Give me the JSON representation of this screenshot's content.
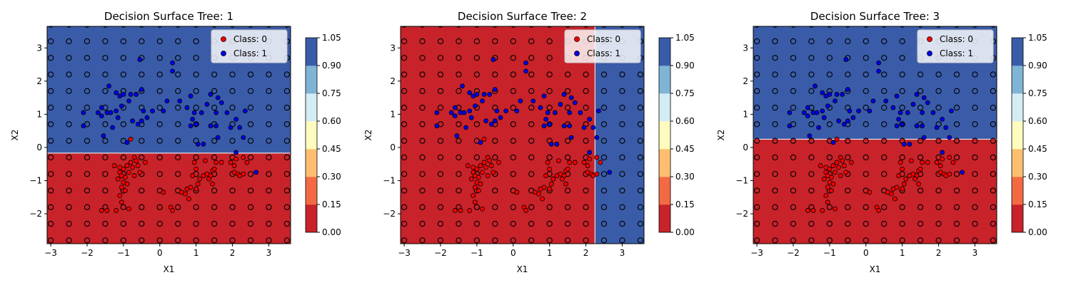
{
  "chart_data": [
    {
      "type": "decision-surface",
      "title": "Decision Surface Tree: 1",
      "xlabel": "X1",
      "ylabel": "X2",
      "xlim": [
        -3.1,
        3.6
      ],
      "ylim": [
        -2.9,
        3.65
      ],
      "xticks": [
        -3,
        -2,
        -1,
        0,
        1,
        2,
        3
      ],
      "yticks": [
        -2,
        -1,
        0,
        1,
        2,
        3
      ],
      "split": {
        "axis": "x2",
        "threshold": -0.17,
        "below_class": 0,
        "above_class": 1
      },
      "legend": {
        "position": "top-right",
        "entries": [
          "Class: 0",
          "Class: 1"
        ]
      },
      "colorbar": {
        "ticks": [
          "0.00",
          "0.15",
          "0.30",
          "0.45",
          "0.60",
          "0.75",
          "0.90",
          "1.05"
        ]
      }
    },
    {
      "type": "decision-surface",
      "title": "Decision Surface Tree: 2",
      "xlabel": "X1",
      "ylabel": "X2",
      "xlim": [
        -3.1,
        3.6
      ],
      "ylim": [
        -2.9,
        3.65
      ],
      "xticks": [
        -3,
        -2,
        -1,
        0,
        1,
        2,
        3
      ],
      "yticks": [
        -2,
        -1,
        0,
        1,
        2,
        3
      ],
      "split": {
        "axis": "x1",
        "threshold": 2.25,
        "below_class": 0,
        "above_class": 1
      },
      "legend": {
        "position": "top-right",
        "entries": [
          "Class: 0",
          "Class: 1"
        ]
      },
      "colorbar": {
        "ticks": [
          "0.00",
          "0.15",
          "0.30",
          "0.45",
          "0.60",
          "0.75",
          "0.90",
          "1.05"
        ]
      }
    },
    {
      "type": "decision-surface",
      "title": "Decision Surface Tree: 3",
      "xlabel": "X1",
      "ylabel": "X2",
      "xlim": [
        -3.1,
        3.6
      ],
      "ylim": [
        -2.9,
        3.65
      ],
      "xticks": [
        -3,
        -2,
        -1,
        0,
        1,
        2,
        3
      ],
      "yticks": [
        -2,
        -1,
        0,
        1,
        2,
        3
      ],
      "split": {
        "axis": "x2",
        "threshold": 0.25,
        "below_class": 0,
        "above_class": 1
      },
      "legend": {
        "position": "top-right",
        "entries": [
          "Class: 0",
          "Class: 1"
        ]
      },
      "colorbar": {
        "ticks": [
          "0.00",
          "0.15",
          "0.30",
          "0.45",
          "0.60",
          "0.75",
          "0.90",
          "1.05"
        ]
      }
    }
  ],
  "colors": {
    "class0": "#c8232a",
    "class1": "#3a5ca8",
    "colorbar_bands": [
      "#c8232a",
      "#f26a44",
      "#fdbf6f",
      "#fefbbe",
      "#d4ecf3",
      "#7fb4d6",
      "#3a5ca8"
    ],
    "point_class0": "#ff0000",
    "point_class1": "#0000ee"
  },
  "grid_points": {
    "x": [
      -3.0,
      -2.5,
      -2.0,
      -1.5,
      -1.0,
      -0.5,
      0.0,
      0.5,
      1.0,
      1.5,
      2.0,
      2.5,
      3.0,
      3.5
    ],
    "y": [
      -2.8,
      -2.3,
      -1.8,
      -1.3,
      -0.8,
      -0.3,
      0.2,
      0.7,
      1.2,
      1.7,
      2.2,
      2.7,
      3.2,
      3.7
    ]
  },
  "samples": {
    "class0": [
      [
        -0.8,
        0.25
      ],
      [
        -0.7,
        -0.3
      ],
      [
        -0.65,
        -0.4
      ],
      [
        -0.8,
        -0.45
      ],
      [
        -0.6,
        -0.55
      ],
      [
        -0.75,
        -0.6
      ],
      [
        -0.9,
        -0.55
      ],
      [
        -1.0,
        -0.65
      ],
      [
        -1.1,
        -0.75
      ],
      [
        -1.05,
        -0.85
      ],
      [
        -0.95,
        -0.9
      ],
      [
        -1.15,
        -0.95
      ],
      [
        -1.0,
        -1.05
      ],
      [
        -0.9,
        -1.1
      ],
      [
        -1.05,
        -1.2
      ],
      [
        -0.95,
        -1.3
      ],
      [
        -1.1,
        -1.45
      ],
      [
        -1.05,
        -1.65
      ],
      [
        -0.85,
        -1.85
      ],
      [
        -1.2,
        -1.9
      ],
      [
        -1.6,
        -1.9
      ],
      [
        -1.45,
        -1.9
      ],
      [
        -0.4,
        -0.45
      ],
      [
        -0.55,
        -0.75
      ],
      [
        -0.7,
        -0.85
      ],
      [
        -0.85,
        -0.75
      ],
      [
        -1.1,
        -0.6
      ],
      [
        0.1,
        -1.35
      ],
      [
        0.3,
        -1.8
      ],
      [
        0.35,
        -1.9
      ],
      [
        0.6,
        -1.35
      ],
      [
        0.75,
        -1.25
      ],
      [
        0.85,
        -1.2
      ],
      [
        0.7,
        -1.4
      ],
      [
        0.8,
        -1.55
      ],
      [
        1.0,
        -1.25
      ],
      [
        1.05,
        -1.1
      ],
      [
        0.9,
        -0.85
      ],
      [
        1.0,
        -0.65
      ],
      [
        0.95,
        -0.45
      ],
      [
        1.1,
        -0.95
      ],
      [
        1.2,
        -0.85
      ],
      [
        1.3,
        -0.8
      ],
      [
        1.4,
        -0.85
      ],
      [
        1.35,
        -0.95
      ],
      [
        1.45,
        -0.7
      ],
      [
        1.55,
        -0.45
      ],
      [
        1.7,
        -0.45
      ],
      [
        1.95,
        -0.45
      ],
      [
        2.05,
        -0.75
      ],
      [
        2.15,
        -0.8
      ],
      [
        2.2,
        -0.85
      ],
      [
        2.3,
        -0.8
      ],
      [
        2.1,
        -0.35
      ],
      [
        2.3,
        -0.3
      ],
      [
        2.05,
        -0.55
      ],
      [
        1.45,
        -1.1
      ],
      [
        1.5,
        -0.65
      ],
      [
        1.25,
        -0.4
      ],
      [
        2.4,
        -0.45
      ],
      [
        -1.25,
        -0.55
      ]
    ],
    "class1": [
      [
        -2.1,
        0.65
      ],
      [
        -2.1,
        1.05
      ],
      [
        -1.7,
        1.05
      ],
      [
        -1.6,
        1.2
      ],
      [
        -1.6,
        0.95
      ],
      [
        -1.45,
        1.05
      ],
      [
        -1.35,
        1.05
      ],
      [
        -1.55,
        0.35
      ],
      [
        -1.3,
        0.6
      ],
      [
        -1.2,
        1.1
      ],
      [
        -1.15,
        0.9
      ],
      [
        -1.1,
        1.55
      ],
      [
        -1.0,
        1.6
      ],
      [
        -1.05,
        1.25
      ],
      [
        -0.85,
        1.4
      ],
      [
        -1.4,
        1.85
      ],
      [
        -1.2,
        1.65
      ],
      [
        -0.8,
        1.6
      ],
      [
        -0.65,
        1.6
      ],
      [
        -0.5,
        1.75
      ],
      [
        -0.55,
        2.65
      ],
      [
        -0.75,
        0.8
      ],
      [
        -0.6,
        0.7
      ],
      [
        -0.5,
        0.8
      ],
      [
        -0.45,
        1.1
      ],
      [
        -0.35,
        0.9
      ],
      [
        -0.2,
        1.1
      ],
      [
        0.1,
        1.1
      ],
      [
        0.2,
        1.4
      ],
      [
        0.35,
        2.3
      ],
      [
        0.35,
        2.55
      ],
      [
        0.55,
        1.4
      ],
      [
        0.75,
        1.2
      ],
      [
        0.85,
        1.55
      ],
      [
        0.95,
        1.05
      ],
      [
        0.9,
        0.85
      ],
      [
        0.85,
        0.65
      ],
      [
        1.0,
        0.7
      ],
      [
        1.05,
        0.1
      ],
      [
        1.15,
        1.05
      ],
      [
        1.3,
        1.3
      ],
      [
        1.4,
        1.6
      ],
      [
        1.55,
        1.05
      ],
      [
        1.6,
        1.5
      ],
      [
        1.7,
        1.35
      ],
      [
        1.85,
        1.05
      ],
      [
        1.55,
        0.65
      ],
      [
        1.4,
        0.65
      ],
      [
        1.6,
        0.3
      ],
      [
        1.95,
        0.6
      ],
      [
        2.1,
        0.85
      ],
      [
        2.1,
        -0.15
      ],
      [
        2.3,
        0.3
      ],
      [
        2.2,
        0.6
      ],
      [
        2.35,
        1.1
      ],
      [
        2.65,
        -0.75
      ],
      [
        1.2,
        0.1
      ],
      [
        -0.9,
        0.15
      ]
    ]
  }
}
